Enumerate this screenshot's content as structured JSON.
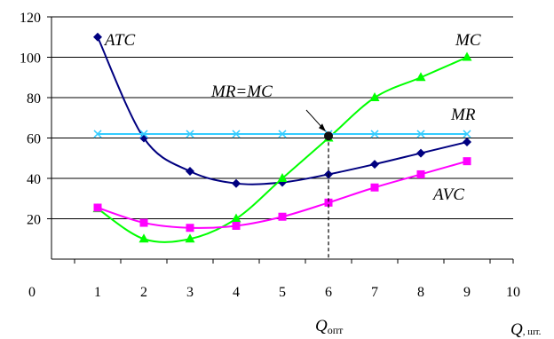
{
  "chart_data": {
    "type": "line",
    "x": [
      1,
      2,
      3,
      4,
      5,
      6,
      7,
      8,
      9
    ],
    "xlim": [
      0,
      10
    ],
    "ylim": [
      0,
      120
    ],
    "x_ticks": [
      "1",
      "2",
      "3",
      "4",
      "5",
      "6",
      "7",
      "8",
      "9",
      "10"
    ],
    "y_ticks": [
      "20",
      "40",
      "60",
      "80",
      "100",
      "120"
    ],
    "origin_label": "0",
    "grid": "horizontal",
    "series": [
      {
        "name": "ATC",
        "color": "#000080",
        "marker": "diamond",
        "values": [
          110,
          60,
          43.5,
          37.5,
          38,
          42,
          47,
          52.5,
          58
        ]
      },
      {
        "name": "MC",
        "color": "#00ff00",
        "marker": "triangle",
        "values": [
          25,
          10,
          10,
          20,
          40,
          60,
          80,
          90,
          100
        ]
      },
      {
        "name": "MR",
        "color": "#33ccff",
        "marker": "x",
        "values": [
          62,
          62,
          62,
          62,
          62,
          62,
          62,
          62,
          62
        ]
      },
      {
        "name": "AVC",
        "color": "#ff00ff",
        "marker": "square",
        "values": [
          25.5,
          18,
          15.5,
          16.5,
          21,
          28,
          35.5,
          42,
          48.5
        ]
      }
    ],
    "optimum": {
      "x": 6,
      "y": 61,
      "label": "MR=MC",
      "q_label": "Q",
      "q_subscript": "опт"
    },
    "x_axis_label": {
      "main": "Q",
      "unit": ", шт."
    }
  }
}
